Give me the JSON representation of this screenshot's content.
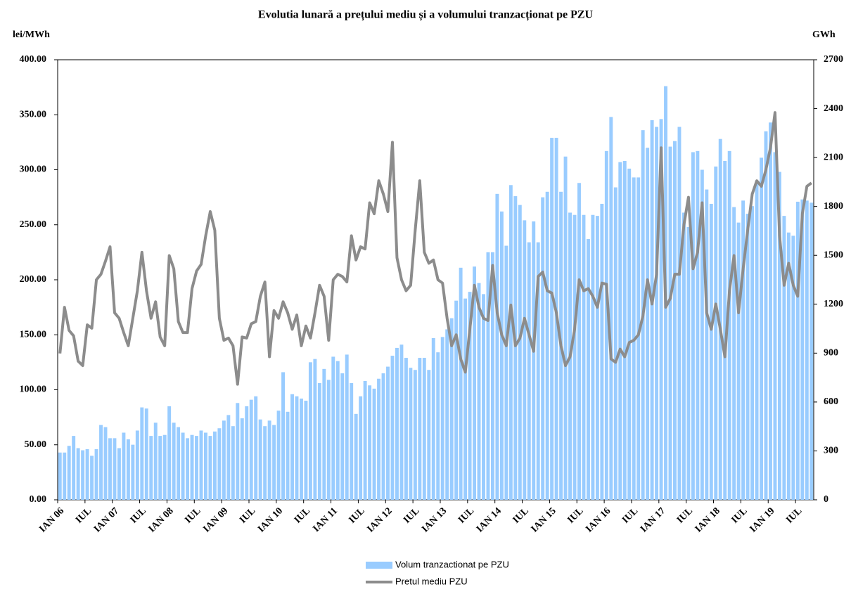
{
  "chart_data": {
    "type": "combo",
    "title": "Evolutia lunară a prețului mediu și a volumului tranzacționat pe PZU",
    "y_label": "lei/MWh",
    "y2_label": "GWh",
    "categories": [
      "IAN 06",
      null,
      null,
      null,
      null,
      null,
      "IUL",
      null,
      null,
      null,
      null,
      null,
      "IAN 07",
      null,
      null,
      null,
      null,
      null,
      "IUL",
      null,
      null,
      null,
      null,
      null,
      "IAN 08",
      null,
      null,
      null,
      null,
      null,
      "IUL",
      null,
      null,
      null,
      null,
      null,
      "IAN 09",
      null,
      null,
      null,
      null,
      null,
      "IUL",
      null,
      null,
      null,
      null,
      null,
      "IAN 10",
      null,
      null,
      null,
      null,
      null,
      "IUL",
      null,
      null,
      null,
      null,
      null,
      "IAN 11",
      null,
      null,
      null,
      null,
      null,
      "IUL",
      null,
      null,
      null,
      null,
      null,
      "IAN 12",
      null,
      null,
      null,
      null,
      null,
      "IUL",
      null,
      null,
      null,
      null,
      null,
      "IAN 13",
      null,
      null,
      null,
      null,
      null,
      "IUL",
      null,
      null,
      null,
      null,
      null,
      "IAN 14",
      null,
      null,
      null,
      null,
      null,
      "IUL",
      null,
      null,
      null,
      null,
      null,
      "IAN 15",
      null,
      null,
      null,
      null,
      null,
      "IUL",
      null,
      null,
      null,
      null,
      null,
      "IAN 16",
      null,
      null,
      null,
      null,
      null,
      "IUL",
      null,
      null,
      null,
      null,
      null,
      "IAN 17",
      null,
      null,
      null,
      null,
      null,
      "IUL",
      null,
      null,
      null,
      null,
      null,
      "IAN 18",
      null,
      null,
      null,
      null,
      null,
      "IUL",
      null,
      null,
      null,
      null,
      null,
      "IAN 19",
      null,
      null,
      null,
      null,
      null,
      "IUL",
      null,
      null,
      null
    ],
    "series": [
      {
        "name": "Volum tranzactionat pe PZU",
        "type": "bar",
        "axis": "y2",
        "color": "#99ccff",
        "values": [
          290,
          290,
          331,
          392,
          317,
          304,
          311,
          270,
          311,
          459,
          446,
          378,
          378,
          317,
          412,
          371,
          338,
          425,
          567,
          560,
          392,
          473,
          392,
          398,
          574,
          473,
          446,
          412,
          378,
          398,
          392,
          425,
          412,
          392,
          419,
          439,
          486,
          520,
          452,
          594,
          500,
          574,
          614,
          635,
          493,
          452,
          486,
          459,
          547,
          783,
          540,
          648,
          635,
          621,
          608,
          844,
          864,
          716,
          803,
          736,
          878,
          851,
          776,
          891,
          716,
          527,
          635,
          729,
          702,
          682,
          743,
          776,
          817,
          884,
          932,
          952,
          871,
          810,
          797,
          871,
          871,
          797,
          992,
          905,
          999,
          1046,
          1114,
          1222,
          1424,
          1235,
          1276,
          1431,
          1330,
          1262,
          1519,
          1519,
          1877,
          1769,
          1559,
          1931,
          1863,
          1809,
          1715,
          1580,
          1708,
          1580,
          1856,
          1890,
          2221,
          2221,
          1890,
          2106,
          1762,
          1748,
          1944,
          1748,
          1600,
          1748,
          1742,
          1816,
          2140,
          2349,
          1917,
          2072,
          2079,
          2032,
          1978,
          1978,
          2268,
          2160,
          2329,
          2288,
          2336,
          2538,
          2167,
          2201,
          2288,
          1762,
          1674,
          2133,
          2140,
          2025,
          1904,
          1816,
          2045,
          2214,
          2079,
          2140,
          1796,
          1701,
          1836,
          1755,
          1802,
          1958,
          2099,
          2261,
          2315,
          2133,
          2012,
          1742,
          1640,
          1620,
          1829,
          1843,
          1836,
          1823
        ]
      },
      {
        "name": "Pretul mediu PZU",
        "type": "line",
        "axis": "y",
        "color": "#8c8c8c",
        "values": [
          133,
          175,
          154,
          149,
          126,
          122,
          159,
          156,
          200,
          205,
          217,
          230,
          170,
          165,
          152,
          140,
          165,
          190,
          225,
          190,
          165,
          180,
          148,
          140,
          222,
          210,
          162,
          152,
          152,
          192,
          208,
          214,
          240,
          262,
          245,
          165,
          145,
          147,
          140,
          105,
          148,
          147,
          160,
          162,
          185,
          198,
          130,
          172,
          165,
          180,
          170,
          155,
          168,
          140,
          158,
          147,
          170,
          195,
          185,
          145,
          200,
          205,
          203,
          198,
          240,
          218,
          230,
          228,
          270,
          260,
          290,
          278,
          262,
          325,
          220,
          200,
          190,
          195,
          245,
          290,
          225,
          215,
          218,
          200,
          197,
          165,
          140,
          150,
          128,
          116,
          155,
          195,
          175,
          165,
          163,
          213,
          170,
          150,
          140,
          177,
          140,
          147,
          165,
          150,
          135,
          203,
          207,
          190,
          188,
          170,
          140,
          122,
          130,
          155,
          200,
          190,
          192,
          185,
          175,
          197,
          196,
          128,
          125,
          137,
          130,
          143,
          145,
          150,
          167,
          200,
          178,
          205,
          320,
          175,
          183,
          205,
          205,
          250,
          275,
          210,
          225,
          270,
          170,
          155,
          178,
          155,
          130,
          190,
          222,
          170,
          210,
          245,
          278,
          290,
          285,
          300,
          320,
          352,
          240,
          195,
          215,
          195,
          185,
          260,
          285,
          288
        ]
      }
    ],
    "ylim": [
      0,
      400
    ],
    "yticks": [
      {
        "value": 0,
        "label": "0.00"
      },
      {
        "value": 50,
        "label": "50.00"
      },
      {
        "value": 100,
        "label": "100.00"
      },
      {
        "value": 150,
        "label": "150.00"
      },
      {
        "value": 200,
        "label": "200.00"
      },
      {
        "value": 250,
        "label": "250.00"
      },
      {
        "value": 300,
        "label": "300.00"
      },
      {
        "value": 350,
        "label": "350.00"
      },
      {
        "value": 400,
        "label": "400.00"
      }
    ],
    "y2lim": [
      0,
      2700
    ],
    "y2ticks": [
      0,
      300,
      600,
      900,
      1200,
      1500,
      1800,
      2100,
      2400,
      2700
    ],
    "grid": false,
    "legend": "bottom"
  }
}
